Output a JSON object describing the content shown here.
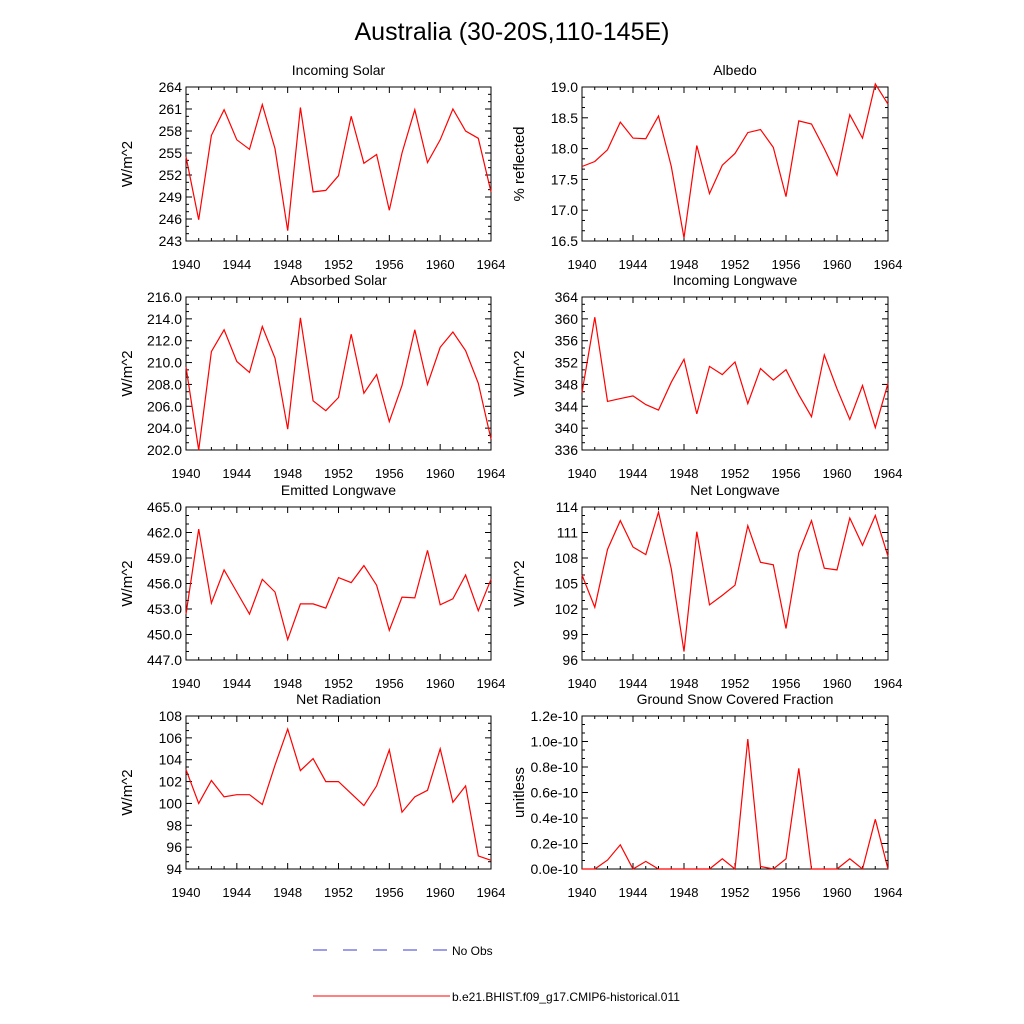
{
  "title": "Australia (30-20S,110-145E)",
  "legend": {
    "obs_label": "No Obs",
    "model_label": "b.e21.BHIST.f09_g17.CMIP6-historical.011",
    "obs_color": "#3b3bd6",
    "model_color": "#ff0000"
  },
  "colors": {
    "series": "#ff0000",
    "axis": "#000000"
  },
  "chart_data": [
    {
      "type": "line",
      "title": "Incoming Solar",
      "ylabel": "W/m^2",
      "x": [
        1940,
        1941,
        1942,
        1943,
        1944,
        1945,
        1946,
        1947,
        1948,
        1949,
        1950,
        1951,
        1952,
        1953,
        1954,
        1955,
        1956,
        1957,
        1958,
        1959,
        1960,
        1961,
        1962,
        1963,
        1964
      ],
      "xticks": [
        "1940",
        "1944",
        "1948",
        "1952",
        "1956",
        "1960",
        "1964"
      ],
      "ylim": [
        243,
        264
      ],
      "yticks": [
        "243",
        "246",
        "249",
        "252",
        "255",
        "258",
        "261",
        "264"
      ],
      "series": [
        {
          "values": [
            254.5,
            245.9,
            257.4,
            260.9,
            256.8,
            255.5,
            261.6,
            255.6,
            244.4,
            261.2,
            249.7,
            249.9,
            251.9,
            260.0,
            253.6,
            254.8,
            247.2,
            255.0,
            260.9,
            253.7,
            256.8,
            261.0,
            258.0,
            257.0,
            249.7
          ]
        }
      ]
    },
    {
      "type": "line",
      "title": "Albedo",
      "ylabel": "% reflected",
      "x": [
        1940,
        1941,
        1942,
        1943,
        1944,
        1945,
        1946,
        1947,
        1948,
        1949,
        1950,
        1951,
        1952,
        1953,
        1954,
        1955,
        1956,
        1957,
        1958,
        1959,
        1960,
        1961,
        1962,
        1963,
        1964
      ],
      "xticks": [
        "1940",
        "1944",
        "1948",
        "1952",
        "1956",
        "1960",
        "1964"
      ],
      "ylim": [
        16.5,
        19.0
      ],
      "yticks": [
        "16.5",
        "17.0",
        "17.5",
        "18.0",
        "18.5",
        "19.0"
      ],
      "series": [
        {
          "values": [
            17.71,
            17.79,
            17.98,
            18.43,
            18.17,
            18.16,
            18.53,
            17.71,
            16.55,
            18.05,
            17.27,
            17.73,
            17.92,
            18.26,
            18.31,
            18.02,
            17.22,
            18.45,
            18.4,
            18.0,
            17.57,
            18.55,
            18.17,
            19.05,
            18.72
          ]
        }
      ]
    },
    {
      "type": "line",
      "title": "Absorbed Solar",
      "ylabel": "W/m^2",
      "x": [
        1940,
        1941,
        1942,
        1943,
        1944,
        1945,
        1946,
        1947,
        1948,
        1949,
        1950,
        1951,
        1952,
        1953,
        1954,
        1955,
        1956,
        1957,
        1958,
        1959,
        1960,
        1961,
        1962,
        1963,
        1964
      ],
      "xticks": [
        "1940",
        "1944",
        "1948",
        "1952",
        "1956",
        "1960",
        "1964"
      ],
      "ylim": [
        202.0,
        216.0
      ],
      "yticks": [
        "202.0",
        "204.0",
        "206.0",
        "208.0",
        "210.0",
        "212.0",
        "214.0",
        "216.0"
      ],
      "series": [
        {
          "values": [
            209.6,
            202.0,
            211.0,
            213.0,
            210.1,
            209.1,
            213.3,
            210.4,
            203.9,
            214.1,
            206.5,
            205.6,
            206.8,
            212.6,
            207.2,
            208.9,
            204.6,
            207.9,
            213.0,
            208.0,
            211.4,
            212.8,
            211.1,
            208.1,
            203.0
          ]
        }
      ]
    },
    {
      "type": "line",
      "title": "Incoming Longwave",
      "ylabel": "W/m^2",
      "x": [
        1940,
        1941,
        1942,
        1943,
        1944,
        1945,
        1946,
        1947,
        1948,
        1949,
        1950,
        1951,
        1952,
        1953,
        1954,
        1955,
        1956,
        1957,
        1958,
        1959,
        1960,
        1961,
        1962,
        1963,
        1964
      ],
      "xticks": [
        "1940",
        "1944",
        "1948",
        "1952",
        "1956",
        "1960",
        "1964"
      ],
      "ylim": [
        336,
        364
      ],
      "yticks": [
        "336",
        "340",
        "344",
        "348",
        "352",
        "356",
        "360",
        "364"
      ],
      "series": [
        {
          "values": [
            346.5,
            360.3,
            344.9,
            345.4,
            345.9,
            344.3,
            343.3,
            348.4,
            352.6,
            342.6,
            351.3,
            349.8,
            352.1,
            344.5,
            350.9,
            348.8,
            350.7,
            346.1,
            342.1,
            353.4,
            347.2,
            341.6,
            347.8,
            340.1,
            348.2
          ]
        }
      ]
    },
    {
      "type": "line",
      "title": "Emitted Longwave",
      "ylabel": "W/m^2",
      "x": [
        1940,
        1941,
        1942,
        1943,
        1944,
        1945,
        1946,
        1947,
        1948,
        1949,
        1950,
        1951,
        1952,
        1953,
        1954,
        1955,
        1956,
        1957,
        1958,
        1959,
        1960,
        1961,
        1962,
        1963,
        1964
      ],
      "xticks": [
        "1940",
        "1944",
        "1948",
        "1952",
        "1956",
        "1960",
        "1964"
      ],
      "ylim": [
        447.0,
        465.0
      ],
      "yticks": [
        "447.0",
        "450.0",
        "453.0",
        "456.0",
        "459.0",
        "462.0",
        "465.0"
      ],
      "series": [
        {
          "values": [
            452.4,
            462.4,
            453.7,
            457.6,
            455.0,
            452.4,
            456.5,
            455.0,
            449.4,
            453.6,
            453.6,
            453.1,
            456.7,
            456.1,
            458.1,
            455.8,
            450.5,
            454.4,
            454.3,
            459.9,
            453.5,
            454.2,
            457.0,
            452.8,
            456.5
          ]
        }
      ]
    },
    {
      "type": "line",
      "title": "Net Longwave",
      "ylabel": "W/m^2",
      "x": [
        1940,
        1941,
        1942,
        1943,
        1944,
        1945,
        1946,
        1947,
        1948,
        1949,
        1950,
        1951,
        1952,
        1953,
        1954,
        1955,
        1956,
        1957,
        1958,
        1959,
        1960,
        1961,
        1962,
        1963,
        1964
      ],
      "xticks": [
        "1940",
        "1944",
        "1948",
        "1952",
        "1956",
        "1960",
        "1964"
      ],
      "ylim": [
        96,
        114
      ],
      "yticks": [
        "96",
        "99",
        "102",
        "105",
        "108",
        "111",
        "114"
      ],
      "series": [
        {
          "values": [
            106.0,
            102.2,
            109.0,
            112.4,
            109.3,
            108.4,
            113.4,
            106.7,
            97.0,
            111.1,
            102.5,
            103.6,
            104.8,
            111.8,
            107.5,
            107.2,
            99.7,
            108.6,
            112.4,
            106.8,
            106.6,
            112.7,
            109.5,
            113.0,
            108.2
          ]
        }
      ]
    },
    {
      "type": "line",
      "title": "Net Radiation",
      "ylabel": "W/m^2",
      "x": [
        1940,
        1941,
        1942,
        1943,
        1944,
        1945,
        1946,
        1947,
        1948,
        1949,
        1950,
        1951,
        1952,
        1953,
        1954,
        1955,
        1956,
        1957,
        1958,
        1959,
        1960,
        1961,
        1962,
        1963,
        1964
      ],
      "xticks": [
        "1940",
        "1944",
        "1948",
        "1952",
        "1956",
        "1960",
        "1964"
      ],
      "ylim": [
        94,
        108
      ],
      "yticks": [
        "94",
        "96",
        "98",
        "100",
        "102",
        "104",
        "106",
        "108"
      ],
      "series": [
        {
          "values": [
            103.1,
            100.0,
            102.1,
            100.6,
            100.8,
            100.8,
            99.9,
            103.5,
            106.8,
            103.0,
            104.1,
            102.0,
            102.0,
            100.9,
            99.8,
            101.6,
            104.9,
            99.2,
            100.6,
            101.2,
            105.0,
            100.1,
            101.6,
            95.2,
            94.8
          ]
        }
      ]
    },
    {
      "type": "line",
      "title": "Ground Snow Covered Fraction",
      "ylabel": "unitless",
      "x": [
        1940,
        1941,
        1942,
        1943,
        1944,
        1945,
        1946,
        1947,
        1948,
        1949,
        1950,
        1951,
        1952,
        1953,
        1954,
        1955,
        1956,
        1957,
        1958,
        1959,
        1960,
        1961,
        1962,
        1963,
        1964
      ],
      "xticks": [
        "1940",
        "1944",
        "1948",
        "1952",
        "1956",
        "1960",
        "1964"
      ],
      "ylim": [
        0.0,
        1.2
      ],
      "yticks": [
        "0.0e-10",
        "0.2e-10",
        "0.4e-10",
        "0.6e-10",
        "0.8e-10",
        "1.0e-10",
        "1.2e-10"
      ],
      "series": [
        {
          "values": [
            0.0,
            0.0,
            0.07,
            0.19,
            0.0,
            0.06,
            0.0,
            0.0,
            0.0,
            0.0,
            0.0,
            0.08,
            0.0,
            1.02,
            0.02,
            0.0,
            0.08,
            0.79,
            0.0,
            0.0,
            0.0,
            0.08,
            0.0,
            0.39,
            0.0
          ]
        }
      ]
    }
  ]
}
